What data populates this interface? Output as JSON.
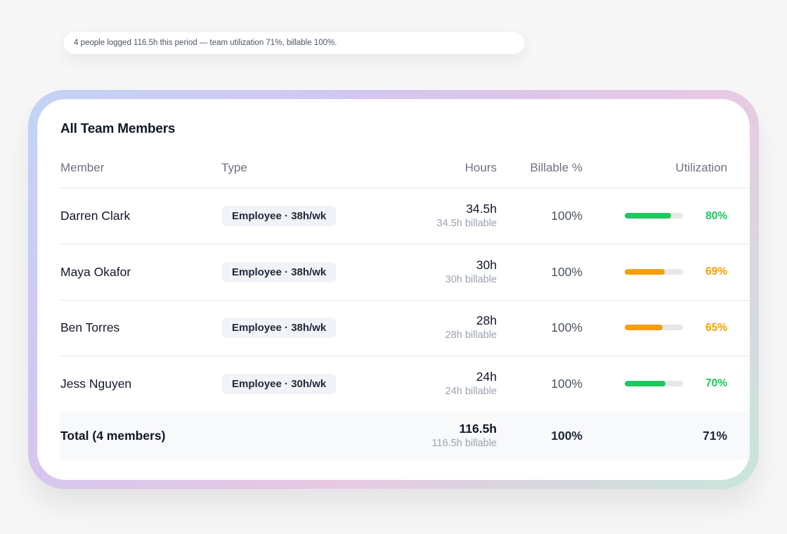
{
  "summary": "4 people logged 116.5h this period — team utilization 71%, billable 100%.",
  "card": {
    "title": "All Team Members",
    "columns": {
      "member": "Member",
      "type": "Type",
      "hours": "Hours",
      "billable": "Billable %",
      "utilization": "Utilization"
    },
    "rows": [
      {
        "name": "Darren Clark",
        "type": "Employee · 38h/wk",
        "hours": "34.5h",
        "billable_hours": "34.5h billable",
        "billable_pct": "100%",
        "utilization": "80%",
        "utilization_value": 0.8,
        "status_color": "#22c55e"
      },
      {
        "name": "Maya Okafor",
        "type": "Employee · 38h/wk",
        "hours": "30h",
        "billable_hours": "30h billable",
        "billable_pct": "100%",
        "utilization": "69%",
        "utilization_value": 0.69,
        "status_color": "#f59e0b"
      },
      {
        "name": "Ben Torres",
        "type": "Employee · 38h/wk",
        "hours": "28h",
        "billable_hours": "28h billable",
        "billable_pct": "100%",
        "utilization": "65%",
        "utilization_value": 0.65,
        "status_color": "#f59e0b"
      },
      {
        "name": "Jess Nguyen",
        "type": "Employee · 30h/wk",
        "hours": "24h",
        "billable_hours": "24h billable",
        "billable_pct": "100%",
        "utilization": "70%",
        "utilization_value": 0.7,
        "status_color": "#22c55e"
      }
    ],
    "total": {
      "label": "Total (4 members)",
      "hours": "116.5h",
      "billable_hours": "116.5h billable",
      "billable_pct": "100%",
      "utilization": "71%"
    }
  }
}
